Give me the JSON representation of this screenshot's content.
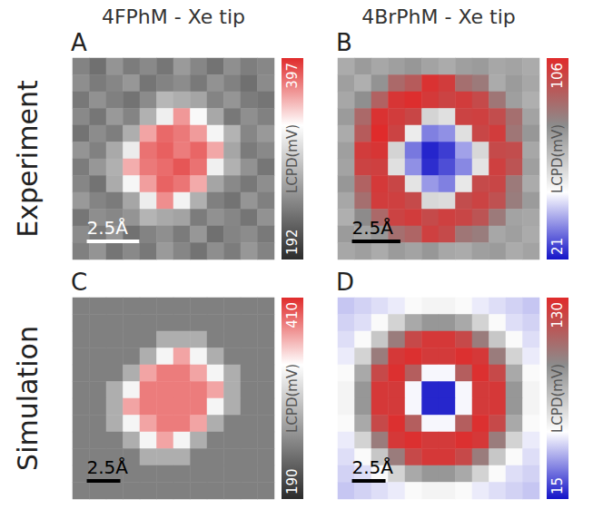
{
  "chart_data": [
    {
      "type": "heatmap",
      "panel": "A",
      "title": "4FPhM - Xe tip",
      "row_label": "Experiment",
      "xlim": [
        0,
        9.6
      ],
      "ylim": [
        0,
        9.6
      ],
      "tick_labels": false,
      "scale_bar": {
        "label": "2.5Å",
        "length": 2.5,
        "color": "#ffffff"
      },
      "colorbar": {
        "label": "LCPD(mV)",
        "range": [
          192,
          397
        ],
        "colors": [
          "#2b2b2b",
          "#969696",
          "#ffffff",
          "#e02b2b"
        ]
      },
      "cells": [
        [
          248,
          236,
          259,
          244,
          252,
          240,
          263,
          250,
          238,
          256,
          245,
          251
        ],
        [
          255,
          243,
          250,
          261,
          239,
          248,
          254,
          242,
          258,
          247,
          236,
          253
        ],
        [
          241,
          257,
          246,
          238,
          253,
          282,
          276,
          270,
          249,
          260,
          244,
          239
        ],
        [
          252,
          240,
          262,
          249,
          278,
          318,
          362,
          325,
          272,
          241,
          256,
          247
        ],
        [
          238,
          254,
          245,
          276,
          358,
          377,
          372,
          361,
          322,
          279,
          250,
          262
        ],
        [
          259,
          247,
          273,
          316,
          374,
          380,
          371,
          378,
          357,
          271,
          243,
          252
        ],
        [
          244,
          261,
          277,
          355,
          372,
          376,
          383,
          374,
          319,
          278,
          258,
          240
        ],
        [
          250,
          238,
          274,
          323,
          360,
          379,
          373,
          356,
          270,
          252,
          241,
          255
        ],
        [
          262,
          249,
          243,
          271,
          317,
          365,
          321,
          277,
          246,
          238,
          260,
          246
        ],
        [
          240,
          255,
          251,
          259,
          280,
          273,
          269,
          244,
          257,
          250,
          239,
          258
        ],
        [
          253,
          242,
          260,
          237,
          248,
          256,
          243,
          261,
          236,
          249,
          254,
          242
        ],
        [
          246,
          259,
          239,
          252,
          241,
          263,
          250,
          238,
          255,
          244,
          261,
          248
        ]
      ]
    },
    {
      "type": "heatmap",
      "panel": "B",
      "title": "4BrPhM - Xe tip",
      "xlim": [
        0,
        10.4
      ],
      "ylim": [
        0,
        10.4
      ],
      "tick_labels": false,
      "scale_bar": {
        "label": "2.5Å",
        "length": 2.5,
        "color": "#000000"
      },
      "colorbar": {
        "label": "LCPD(mV)",
        "range": [
          21,
          106
        ],
        "colors": [
          "#1414c8",
          "#ffffff",
          "#8c8c8c",
          "#e02b2b"
        ]
      },
      "cells": [
        [
          70,
          74,
          71,
          73,
          75,
          72,
          70,
          73,
          74,
          71,
          72,
          70
        ],
        [
          73,
          69,
          76,
          88,
          92,
          104,
          101,
          86,
          83,
          70,
          74,
          71
        ],
        [
          71,
          77,
          90,
          103,
          105,
          102,
          99,
          101,
          97,
          84,
          73,
          69
        ],
        [
          74,
          88,
          104,
          101,
          98,
          60,
          57,
          99,
          100,
          96,
          86,
          72
        ],
        [
          70,
          92,
          106,
          99,
          54,
          34,
          36,
          57,
          98,
          101,
          84,
          75
        ],
        [
          73,
          101,
          103,
          60,
          33,
          23,
          26,
          38,
          59,
          97,
          96,
          71
        ],
        [
          72,
          99,
          100,
          57,
          36,
          24,
          28,
          35,
          56,
          100,
          94,
          73
        ],
        [
          75,
          90,
          102,
          98,
          56,
          37,
          34,
          55,
          97,
          98,
          83,
          70
        ],
        [
          71,
          86,
          101,
          100,
          97,
          59,
          58,
          96,
          99,
          95,
          82,
          74
        ],
        [
          69,
          78,
          88,
          99,
          101,
          97,
          100,
          98,
          94,
          83,
          72,
          71
        ],
        [
          74,
          72,
          75,
          86,
          89,
          100,
          97,
          84,
          82,
          71,
          73,
          70
        ],
        [
          71,
          73,
          70,
          74,
          72,
          75,
          71,
          70,
          73,
          74,
          70,
          72
        ]
      ]
    },
    {
      "type": "heatmap",
      "panel": "C",
      "row_label": "Simulation",
      "xlim": [
        0,
        15
      ],
      "ylim": [
        0,
        15
      ],
      "tick_labels": false,
      "scale_bar": {
        "label": "2.5Å",
        "length": 2.5,
        "color": "#000000"
      },
      "colorbar": {
        "label": "LCPD(mV)",
        "range": [
          190,
          410
        ],
        "colors": [
          "#2b2b2b",
          "#969696",
          "#ffffff",
          "#e02b2b"
        ]
      },
      "cells": [
        [
          248,
          248,
          248,
          248,
          248,
          248,
          248,
          248,
          248,
          248,
          248,
          248
        ],
        [
          248,
          248,
          248,
          248,
          248,
          248,
          248,
          248,
          248,
          248,
          248,
          248
        ],
        [
          248,
          248,
          248,
          248,
          248,
          280,
          280,
          280,
          248,
          248,
          248,
          248
        ],
        [
          248,
          248,
          248,
          248,
          280,
          330,
          368,
          330,
          280,
          248,
          248,
          248
        ],
        [
          248,
          248,
          248,
          280,
          368,
          382,
          382,
          368,
          330,
          280,
          248,
          248
        ],
        [
          248,
          248,
          280,
          330,
          382,
          382,
          382,
          382,
          368,
          280,
          248,
          248
        ],
        [
          248,
          248,
          280,
          368,
          382,
          382,
          382,
          382,
          330,
          280,
          248,
          248
        ],
        [
          248,
          248,
          280,
          330,
          368,
          382,
          382,
          368,
          280,
          248,
          248,
          248
        ],
        [
          248,
          248,
          248,
          280,
          330,
          368,
          330,
          280,
          248,
          248,
          248,
          248
        ],
        [
          248,
          248,
          248,
          248,
          280,
          280,
          280,
          248,
          248,
          248,
          248,
          248
        ],
        [
          248,
          248,
          248,
          248,
          248,
          248,
          248,
          248,
          248,
          248,
          248,
          248
        ],
        [
          248,
          248,
          248,
          248,
          248,
          248,
          248,
          248,
          248,
          248,
          248,
          248
        ]
      ]
    },
    {
      "type": "heatmap",
      "panel": "D",
      "xlim": [
        0,
        15
      ],
      "ylim": [
        0,
        15
      ],
      "tick_labels": false,
      "scale_bar": {
        "label": "2.5Å",
        "length": 2.5,
        "color": "#000000"
      },
      "colorbar": {
        "label": "LCPD(mV)",
        "range": [
          15,
          130
        ],
        "colors": [
          "#1414c8",
          "#ffffff",
          "#8c8c8c",
          "#e02b2b"
        ]
      },
      "cells": [
        [
          44,
          46,
          48,
          50,
          55,
          57,
          57,
          55,
          50,
          48,
          46,
          44
        ],
        [
          46,
          48,
          55,
          68,
          82,
          88,
          88,
          82,
          68,
          55,
          48,
          46
        ],
        [
          48,
          55,
          72,
          98,
          118,
          125,
          125,
          118,
          98,
          72,
          55,
          48
        ],
        [
          50,
          68,
          98,
          125,
          128,
          124,
          124,
          128,
          125,
          98,
          68,
          50
        ],
        [
          55,
          82,
          118,
          128,
          110,
          52,
          52,
          110,
          128,
          118,
          82,
          55
        ],
        [
          57,
          88,
          125,
          124,
          52,
          18,
          18,
          52,
          124,
          125,
          88,
          57
        ],
        [
          57,
          88,
          125,
          124,
          52,
          18,
          18,
          52,
          124,
          125,
          88,
          57
        ],
        [
          55,
          82,
          118,
          128,
          110,
          52,
          52,
          110,
          128,
          118,
          82,
          55
        ],
        [
          50,
          68,
          98,
          125,
          128,
          124,
          124,
          128,
          125,
          98,
          68,
          50
        ],
        [
          48,
          55,
          72,
          98,
          118,
          125,
          125,
          118,
          98,
          72,
          55,
          48
        ],
        [
          46,
          48,
          55,
          68,
          82,
          88,
          88,
          82,
          68,
          55,
          48,
          46
        ],
        [
          44,
          46,
          48,
          50,
          55,
          57,
          57,
          55,
          50,
          48,
          46,
          44
        ]
      ]
    }
  ]
}
